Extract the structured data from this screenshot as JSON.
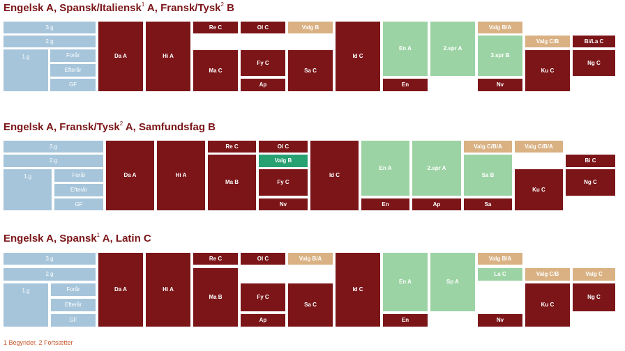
{
  "sections": [
    {
      "title_parts": [
        "Engelsk A, Spansk/Italiensk",
        "1",
        " A, Fransk/Tysk",
        "2",
        " B"
      ],
      "blocks": [
        "3.g",
        "2.g",
        "1.g",
        "Forår",
        "Efterår",
        "GF",
        "Da A",
        "Hi A",
        "Re C",
        "Ol C",
        "Valg B",
        "Ma C",
        "Fy C",
        "Ap",
        "Sa C",
        "Id C",
        "En A",
        "En",
        "2.spr A",
        "Valg B/A",
        "3.spr B",
        "Nv",
        "Valg C/B",
        "Bi/La C",
        "Ku C",
        "Ng C"
      ]
    },
    {
      "title_parts": [
        "Engelsk A, Fransk/Tysk",
        "2",
        " A, Samfundsfag B"
      ],
      "blocks": [
        "3.g",
        "2.g",
        "1.g",
        "Forår",
        "Efterår",
        "GF",
        "Da A",
        "Hi A",
        "Re C",
        "Ma B",
        "Ol C",
        "Valg B",
        "Fy C",
        "Nv",
        "Id C",
        "En A",
        "En",
        "2.spr A",
        "Ap",
        "Valg C/B/A",
        "Sa B",
        "Sa",
        "Valg C/B/A",
        "Ku C",
        "Bi C",
        "Ng C"
      ]
    },
    {
      "title_parts": [
        "Engelsk A, Spansk",
        "1",
        " A, Latin C"
      ],
      "blocks": [
        "3.g",
        "2.g",
        "1.g",
        "Forår",
        "Efterår",
        "GF",
        "Da A",
        "Hi A",
        "Re C",
        "Ma B",
        "Ol C",
        "Fy C",
        "Ap",
        "Valg B/A",
        "Sa C",
        "Id C",
        "En A",
        "En",
        "Sp A",
        "Valg B/A",
        "La C",
        "Nv",
        "Valg C/B",
        "Ku C",
        "Valg C",
        "Ng C"
      ]
    }
  ],
  "footnote": "1 Begynder, 2 Fortsætter",
  "colors": {
    "dark_red": "#7b1518",
    "light_green": "#9cd3a4",
    "dark_green": "#27a072",
    "tan": "#d9b183",
    "light_blue": "#a6c5db",
    "footnote": "#c8552a"
  }
}
